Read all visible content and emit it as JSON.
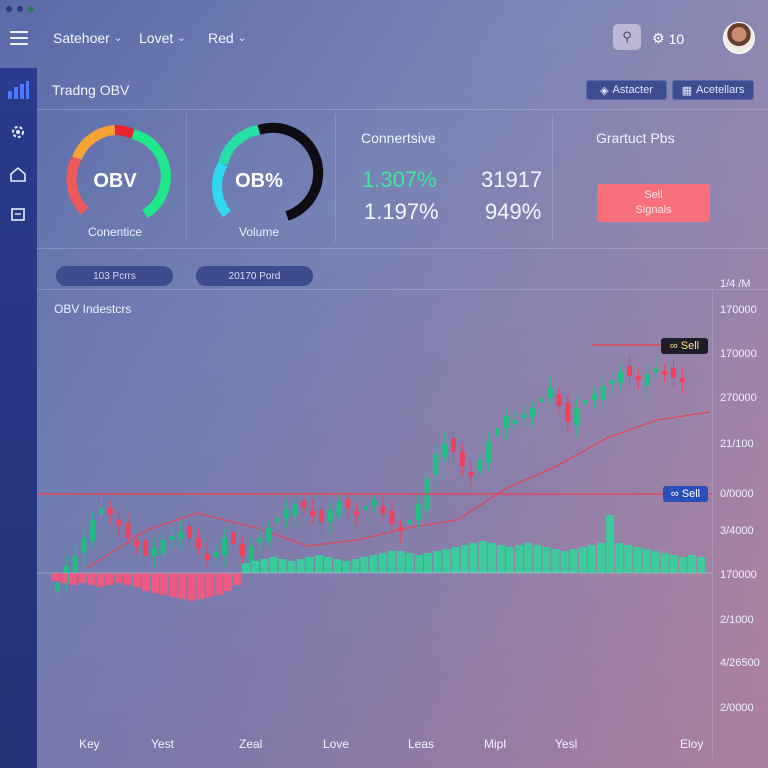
{
  "header": {
    "nav": [
      {
        "label": "Satehoer"
      },
      {
        "label": "Lovet"
      },
      {
        "label": "Red"
      }
    ],
    "notification_count": "10"
  },
  "panel": {
    "title": "Tradng OBV",
    "buttons": [
      {
        "label": "Astacter"
      },
      {
        "label": "Acetellars"
      }
    ]
  },
  "gauges": [
    {
      "text": "OBV",
      "label": "Conentice"
    },
    {
      "text": "OB%",
      "label": "Volume"
    }
  ],
  "stats": {
    "heading": "Connertsive",
    "values": [
      {
        "value": "1.307%",
        "color": "#3ee8a0"
      },
      {
        "value": "31917",
        "color": "#f4f6ff"
      },
      {
        "value": "1.197%",
        "color": "#f4f6ff"
      },
      {
        "value": "949%",
        "color": "#f4f6ff"
      }
    ]
  },
  "signals": {
    "heading": "Grartuct Pbs",
    "button_line1": "Sell",
    "button_line2": "Signals"
  },
  "pills": [
    {
      "label": "103 Pcrrs"
    },
    {
      "label": "20170 Pord"
    }
  ],
  "chart": {
    "title": "OBV Indestcrs",
    "corner_label": "1/4 /M",
    "y_labels": [
      "170000",
      "170000",
      "270000",
      "21/100",
      "0/0000",
      "3/4000",
      "170000",
      "2/1000",
      "4/26500",
      "2/0000"
    ],
    "x_labels": [
      "Key",
      "Yest",
      "Zeal",
      "Love",
      "Leas",
      "Mipl",
      "Yesl",
      "Eloy"
    ],
    "tags": [
      {
        "label": "Sell",
        "bg": "#1e1e2a",
        "fg": "#ffe27a"
      },
      {
        "label": "Sell",
        "bg": "#2a4fb8",
        "fg": "#ffffff"
      }
    ]
  },
  "chart_data": {
    "type": "candlestick",
    "title": "OBV Indestcrs",
    "y_tick_labels": [
      "170000",
      "170000",
      "270000",
      "21/100",
      "0/0000",
      "3/4000",
      "170000",
      "2/1000",
      "4/26500",
      "2/0000"
    ],
    "x_tick_labels": [
      "Key",
      "Yest",
      "Zeal",
      "Love",
      "Leas",
      "Mipl",
      "Yesl",
      "Eloy"
    ],
    "close_trend": [
      515,
      498,
      488,
      470,
      452,
      440,
      446,
      458,
      470,
      478,
      488,
      480,
      472,
      468,
      464,
      470,
      480,
      492,
      484,
      470,
      476,
      488,
      478,
      470,
      460,
      450,
      442,
      436,
      440,
      448,
      454,
      442,
      434,
      440,
      446,
      438,
      432,
      446,
      456,
      462,
      452,
      436,
      410,
      386,
      376,
      384,
      398,
      406,
      392,
      374,
      360,
      348,
      352,
      346,
      340,
      330,
      320,
      338,
      354,
      340,
      332,
      326,
      318,
      312,
      304,
      308,
      312,
      306,
      300,
      306,
      310,
      312
    ],
    "moving_average": [
      [
        50,
        500
      ],
      [
        110,
        462
      ],
      [
        160,
        445
      ],
      [
        220,
        460
      ],
      [
        270,
        478
      ],
      [
        320,
        472
      ],
      [
        370,
        460
      ],
      [
        420,
        452
      ],
      [
        470,
        420
      ],
      [
        520,
        398
      ],
      [
        570,
        370
      ],
      [
        620,
        352
      ],
      [
        673,
        344
      ]
    ],
    "histogram": [
      -8,
      -10,
      -12,
      -10,
      -12,
      -14,
      -12,
      -10,
      -12,
      -14,
      -18,
      -20,
      -22,
      -24,
      -26,
      -28,
      -26,
      -24,
      -22,
      -18,
      -12,
      10,
      12,
      14,
      16,
      14,
      12,
      14,
      16,
      18,
      16,
      14,
      12,
      14,
      16,
      18,
      20,
      22,
      22,
      20,
      18,
      20,
      22,
      24,
      26,
      28,
      30,
      32,
      30,
      28,
      26,
      28,
      30,
      28,
      26,
      24,
      22,
      24,
      26,
      28,
      30,
      58,
      30,
      28,
      26,
      24,
      22,
      20,
      18,
      16,
      18,
      16
    ],
    "horizontal_lines": [
      {
        "label": "Sell",
        "value": "resistance"
      },
      {
        "label": "Sell",
        "value": "support"
      }
    ],
    "colors": {
      "up": "#1fbf82",
      "down": "#f0405a",
      "ma": "#e0465a",
      "hist_up": "#34d39a",
      "hist_down": "#f7577c"
    }
  }
}
